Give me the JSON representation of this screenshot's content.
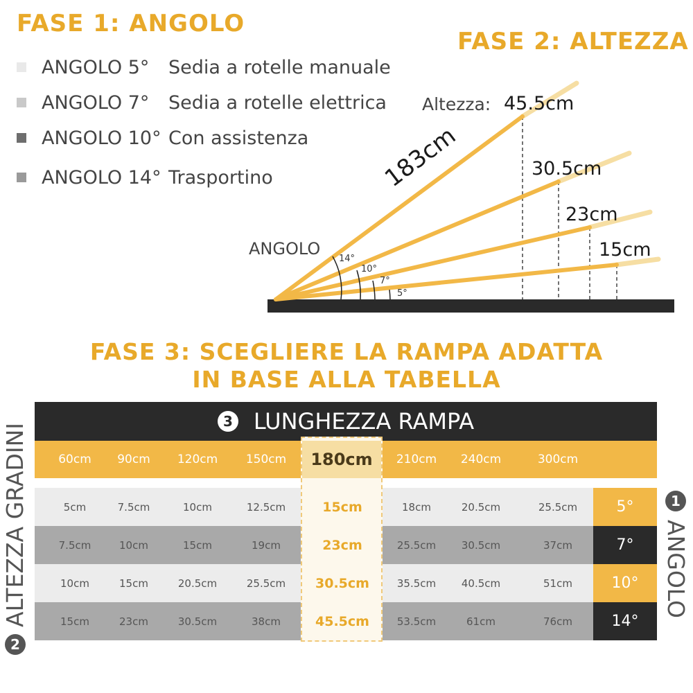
{
  "step1": {
    "title": "FASE 1: ANGOLO"
  },
  "step2": {
    "title": "FASE 2: ALTEZZA"
  },
  "legend": [
    {
      "code": "ANGOLO 5°",
      "desc": "Sedia a rotelle manuale",
      "color": "#e9e9e9"
    },
    {
      "code": "ANGOLO 7°",
      "desc": "Sedia a rotelle elettrica",
      "color": "#c9c9c9"
    },
    {
      "code": "ANGOLO 10°",
      "desc": "Con assistenza",
      "color": "#6e6e6e"
    },
    {
      "code": "ANGOLO 14°",
      "desc": "Trasportino",
      "color": "#9a9a9a"
    }
  ],
  "diagram": {
    "height_label": "Altezza:",
    "length_label": "183cm",
    "angle_label": "ANGOLO",
    "angles": [
      "14°",
      "10°",
      "7°",
      "5°"
    ],
    "heights": [
      "45.5cm",
      "30.5cm",
      "23cm",
      "15cm"
    ]
  },
  "step3": {
    "title_line1": "FASE 3: SCEGLIERE LA RAMPA ADATTA",
    "title_line2": "IN BASE ALLA TABELLA"
  },
  "table": {
    "header_num": "3",
    "header": "LUNGHEZZA RAMPA",
    "lengths": [
      "60cm",
      "90cm",
      "120cm",
      "150cm",
      "180cm",
      "210cm",
      "240cm",
      "300cm"
    ],
    "rows": [
      {
        "values": [
          "5cm",
          "7.5cm",
          "10cm",
          "12.5cm",
          "15cm",
          "18cm",
          "20.5cm",
          "25.5cm"
        ],
        "angle": "5°"
      },
      {
        "values": [
          "7.5cm",
          "10cm",
          "15cm",
          "19cm",
          "23cm",
          "25.5cm",
          "30.5cm",
          "37cm"
        ],
        "angle": "7°"
      },
      {
        "values": [
          "10cm",
          "15cm",
          "20.5cm",
          "25.5cm",
          "30.5cm",
          "35.5cm",
          "40.5cm",
          "51cm"
        ],
        "angle": "10°"
      },
      {
        "values": [
          "15cm",
          "23cm",
          "30.5cm",
          "38cm",
          "45.5cm",
          "53.5cm",
          "61cm",
          "76cm"
        ],
        "angle": "14°"
      }
    ],
    "left_axis_num": "2",
    "left_axis": "ALTEZZA GRADINI",
    "right_axis_num": "1",
    "right_axis": "ANGOLO"
  },
  "colors": {
    "accent": "#e8a92a",
    "dark": "#2a2a2a"
  }
}
